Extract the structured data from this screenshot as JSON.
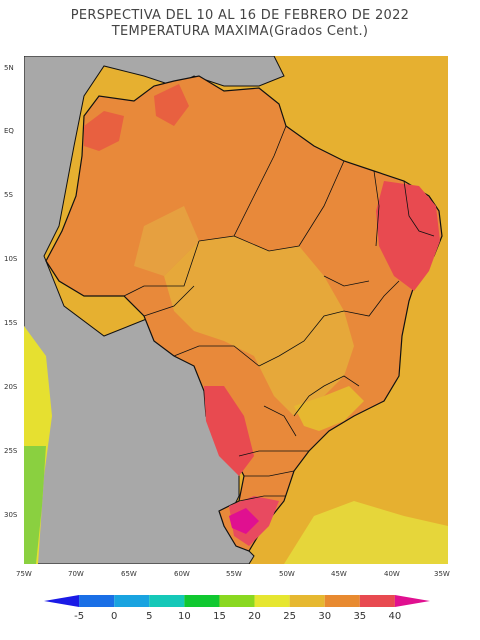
{
  "title": {
    "line1": "PERSPECTIVA DEL 10 AL 16 DE FEBRERO DE 2022",
    "line2": "TEMPERATURA MAXIMA(Grados Cent.)"
  },
  "map": {
    "lat_ticks": [
      "5N",
      "EQ",
      "5S",
      "10S",
      "15S",
      "20S",
      "25S",
      "30S"
    ],
    "lon_ticks": [
      "75W",
      "70W",
      "65W",
      "60W",
      "55W",
      "50W",
      "45W",
      "40W",
      "35W"
    ]
  },
  "colorbar": {
    "labels": [
      "-5",
      "0",
      "5",
      "10",
      "15",
      "20",
      "25",
      "30",
      "35",
      "40"
    ],
    "colors": [
      "#1a1ae6",
      "#1a6fe6",
      "#19a3e0",
      "#15c8b8",
      "#10c830",
      "#8ad820",
      "#e6e630",
      "#e6b830",
      "#e88a30",
      "#e84a50",
      "#e01090"
    ]
  }
}
